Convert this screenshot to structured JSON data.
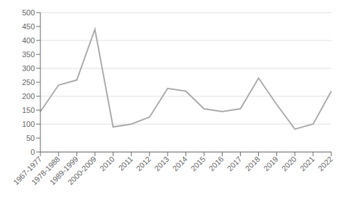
{
  "chart_data": {
    "type": "line",
    "categories": [
      "1967-1977",
      "1978-1988",
      "1989-1999",
      "2000-2009",
      "2010",
      "2011",
      "2012",
      "2013",
      "2014",
      "2015",
      "2016",
      "2017",
      "2018",
      "2019",
      "2020",
      "2021",
      "2022"
    ],
    "values": [
      145,
      240,
      258,
      440,
      90,
      100,
      125,
      228,
      218,
      155,
      145,
      155,
      265,
      170,
      82,
      100,
      218
    ],
    "color": "#aaaaaa",
    "ylim": [
      0,
      500
    ],
    "yticks": [
      0,
      50,
      100,
      150,
      200,
      250,
      300,
      350,
      400,
      450,
      500
    ],
    "grid": true
  }
}
